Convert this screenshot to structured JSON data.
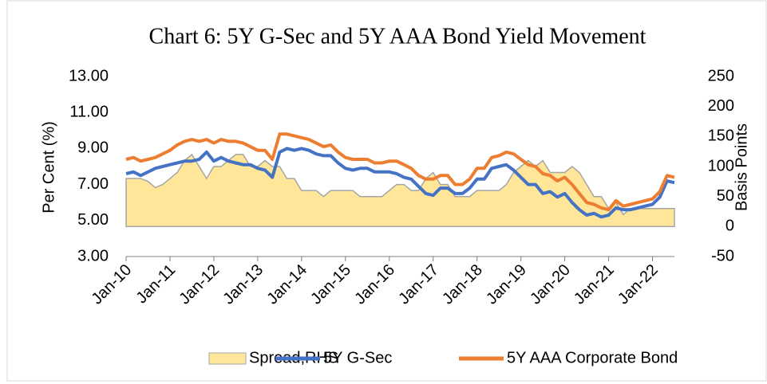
{
  "chart_data": {
    "type": "line",
    "title": "Chart 6: 5Y G-Sec and 5Y AAA Bond Yield Movement",
    "ylabel": "Per Cent (%)",
    "y2label": "Basis Points",
    "x": [
      "Jan-10",
      "Mar-10",
      "May-10",
      "Jul-10",
      "Sep-10",
      "Nov-10",
      "Jan-11",
      "Mar-11",
      "May-11",
      "Jul-11",
      "Sep-11",
      "Nov-11",
      "Jan-12",
      "Mar-12",
      "May-12",
      "Jul-12",
      "Sep-12",
      "Nov-12",
      "Jan-13",
      "Mar-13",
      "May-13",
      "Jul-13",
      "Sep-13",
      "Nov-13",
      "Jan-14",
      "Mar-14",
      "May-14",
      "Jul-14",
      "Sep-14",
      "Nov-14",
      "Jan-15",
      "Mar-15",
      "May-15",
      "Jul-15",
      "Sep-15",
      "Nov-15",
      "Jan-16",
      "Mar-16",
      "May-16",
      "Jul-16",
      "Sep-16",
      "Nov-16",
      "Jan-17",
      "Mar-17",
      "May-17",
      "Jul-17",
      "Sep-17",
      "Nov-17",
      "Jan-18",
      "Mar-18",
      "May-18",
      "Jul-18",
      "Sep-18",
      "Nov-18",
      "Jan-19",
      "Mar-19",
      "May-19",
      "Jul-19",
      "Sep-19",
      "Nov-19",
      "Jan-20",
      "Mar-20",
      "May-20",
      "Jul-20",
      "Sep-20",
      "Nov-20",
      "Jan-21",
      "Mar-21",
      "May-21",
      "Jul-21",
      "Sep-21",
      "Nov-21",
      "Jan-22",
      "Mar-22",
      "May-22",
      "Jul-22"
    ],
    "xticks": [
      "Jan-10",
      "Jan-11",
      "Jan-12",
      "Jan-13",
      "Jan-14",
      "Jan-15",
      "Jan-16",
      "Jan-17",
      "Jan-18",
      "Jan-19",
      "Jan-20",
      "Jan-21",
      "Jan-22"
    ],
    "series": [
      {
        "name": "Spread,RHS",
        "color": "#ffe699",
        "edge": "#a5a5a5",
        "area": true,
        "axis": "y2",
        "values": [
          80,
          80,
          80,
          75,
          65,
          70,
          80,
          90,
          110,
          120,
          100,
          80,
          100,
          100,
          110,
          120,
          120,
          100,
          100,
          110,
          100,
          100,
          80,
          80,
          60,
          60,
          60,
          50,
          60,
          60,
          60,
          60,
          50,
          50,
          50,
          50,
          60,
          70,
          70,
          60,
          60,
          80,
          90,
          70,
          70,
          50,
          50,
          50,
          60,
          60,
          60,
          60,
          70,
          90,
          100,
          110,
          100,
          110,
          90,
          90,
          90,
          100,
          90,
          70,
          50,
          50,
          30,
          40,
          20,
          30,
          30,
          30,
          30,
          30,
          30,
          30
        ]
      },
      {
        "name": "5Y G-Sec",
        "color": "#4472c4",
        "values": [
          7.6,
          7.7,
          7.5,
          7.7,
          7.9,
          8.0,
          8.1,
          8.2,
          8.3,
          8.3,
          8.4,
          8.8,
          8.3,
          8.5,
          8.3,
          8.2,
          8.1,
          8.1,
          7.9,
          7.8,
          7.4,
          8.8,
          9.0,
          8.9,
          9.0,
          8.9,
          8.7,
          8.6,
          8.6,
          8.2,
          7.9,
          7.8,
          7.9,
          7.9,
          7.7,
          7.7,
          7.7,
          7.6,
          7.4,
          7.3,
          6.9,
          6.5,
          6.4,
          6.8,
          6.8,
          6.5,
          6.5,
          6.8,
          7.3,
          7.3,
          7.9,
          8.0,
          8.1,
          7.8,
          7.4,
          7.0,
          7.0,
          6.5,
          6.6,
          6.3,
          6.5,
          6.0,
          5.6,
          5.3,
          5.4,
          5.2,
          5.3,
          5.7,
          5.6,
          5.6,
          5.7,
          5.8,
          5.9,
          6.3,
          7.2,
          7.1
        ]
      },
      {
        "name": "5Y AAA Corporate Bond",
        "color": "#ed7d31",
        "values": [
          8.4,
          8.5,
          8.3,
          8.4,
          8.5,
          8.7,
          8.9,
          9.2,
          9.4,
          9.5,
          9.4,
          9.5,
          9.3,
          9.5,
          9.4,
          9.4,
          9.3,
          9.1,
          8.9,
          8.9,
          8.4,
          9.8,
          9.8,
          9.7,
          9.6,
          9.5,
          9.3,
          9.1,
          9.2,
          8.8,
          8.5,
          8.4,
          8.4,
          8.4,
          8.2,
          8.2,
          8.3,
          8.3,
          8.1,
          7.9,
          7.5,
          7.3,
          7.3,
          7.5,
          7.5,
          7.0,
          7.0,
          7.3,
          7.9,
          7.9,
          8.5,
          8.6,
          8.8,
          8.7,
          8.4,
          8.1,
          8.0,
          7.6,
          7.5,
          7.2,
          7.4,
          7.0,
          6.5,
          6.0,
          5.9,
          5.7,
          5.6,
          6.1,
          5.8,
          5.9,
          6.0,
          6.1,
          6.2,
          6.6,
          7.5,
          7.4
        ]
      }
    ],
    "ylim": [
      3,
      13
    ],
    "yticks": [
      {
        "value": 3,
        "label": "3.00"
      },
      {
        "value": 5,
        "label": "5.00"
      },
      {
        "value": 7,
        "label": "7.00"
      },
      {
        "value": 9,
        "label": "9.00"
      },
      {
        "value": 11,
        "label": "11.00"
      },
      {
        "value": 13,
        "label": "13.00"
      }
    ],
    "y2lim": [
      -50,
      250
    ],
    "y2ticks": [
      -50,
      0,
      50,
      100,
      150,
      200,
      250
    ],
    "grid": false,
    "legend": "bottom"
  }
}
